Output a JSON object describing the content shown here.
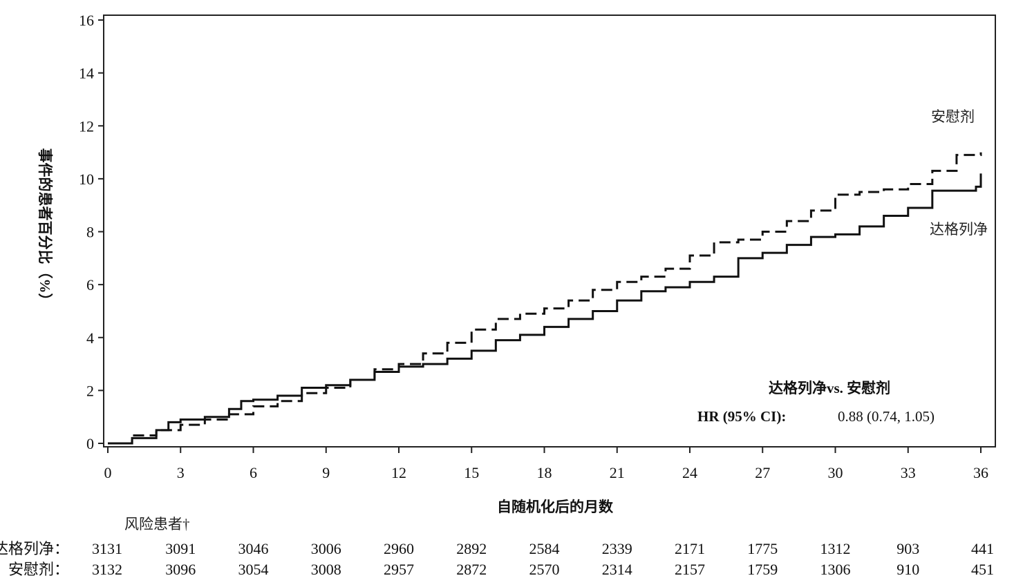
{
  "chart_data": {
    "type": "line",
    "ylabel": "事件的患者百分比（%）",
    "xlabel": "自随机化后的月数",
    "xlim": [
      0,
      36
    ],
    "ylim": [
      0,
      16
    ],
    "x_ticks": [
      0,
      3,
      6,
      9,
      12,
      15,
      18,
      21,
      24,
      27,
      30,
      33,
      36
    ],
    "y_ticks": [
      0,
      2,
      4,
      6,
      8,
      10,
      12,
      14,
      16
    ],
    "grid": false,
    "series": [
      {
        "name": "安慰剂",
        "style": "dashed",
        "color": "#111111",
        "x": [
          0,
          1,
          2,
          3,
          4,
          5,
          6,
          7,
          8,
          9,
          10,
          11,
          12,
          13,
          14,
          15,
          16,
          17,
          18,
          19,
          20,
          21,
          22,
          23,
          24,
          25,
          26,
          27,
          28,
          29,
          30,
          31,
          32,
          33,
          34,
          35,
          36
        ],
        "y": [
          0,
          0.3,
          0.5,
          0.7,
          0.9,
          1.1,
          1.4,
          1.6,
          1.9,
          2.1,
          2.4,
          2.8,
          3.0,
          3.4,
          3.8,
          4.3,
          4.7,
          4.9,
          5.1,
          5.4,
          5.8,
          6.1,
          6.3,
          6.6,
          7.1,
          7.6,
          7.7,
          8.0,
          8.4,
          8.8,
          9.4,
          9.5,
          9.6,
          9.8,
          10.3,
          10.9,
          11.0
        ]
      },
      {
        "name": "达格列净",
        "style": "solid",
        "color": "#111111",
        "x": [
          0,
          1,
          2,
          2.5,
          3,
          4,
          5,
          5.5,
          6,
          7,
          8,
          9,
          10,
          11,
          12,
          13,
          14,
          15,
          16,
          17,
          18,
          19,
          20,
          21,
          22,
          23,
          24,
          25,
          26,
          27,
          28,
          29,
          30,
          31,
          32,
          33,
          34,
          35,
          35.8,
          36
        ],
        "y": [
          0,
          0.2,
          0.5,
          0.8,
          0.9,
          1.0,
          1.3,
          1.6,
          1.65,
          1.8,
          2.1,
          2.2,
          2.4,
          2.7,
          2.9,
          3.0,
          3.2,
          3.5,
          3.9,
          4.1,
          4.4,
          4.7,
          5.0,
          5.4,
          5.75,
          5.9,
          6.1,
          6.3,
          7.0,
          7.2,
          7.5,
          7.8,
          7.9,
          8.2,
          8.6,
          8.9,
          9.55,
          9.55,
          9.7,
          10.2
        ]
      }
    ],
    "annotation": {
      "comparison": "达格列净vs. 安慰剂",
      "hr_label": "HR (95% CI):",
      "hr_value": "0.88 (0.74, 1.05)"
    },
    "risk_table": {
      "title": "风险患者†",
      "rows": [
        {
          "label": "达格列净：",
          "values": [
            "3131",
            "3091",
            "3046",
            "3006",
            "2960",
            "2892",
            "2584",
            "2339",
            "2171",
            "1775",
            "1312",
            "903",
            "441"
          ]
        },
        {
          "label": "安慰剂：",
          "values": [
            "3132",
            "3096",
            "3054",
            "3008",
            "2957",
            "2872",
            "2570",
            "2314",
            "2157",
            "1759",
            "1306",
            "910",
            "451"
          ]
        }
      ]
    }
  }
}
